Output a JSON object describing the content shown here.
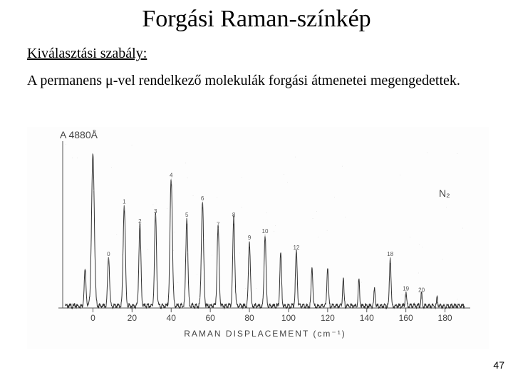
{
  "title": "Forgási Raman-színkép",
  "subtitle": "Kiválasztási szabály:",
  "body": "A permanens μ-vel rendelkező molekulák forgási átmenetei megengedettek.",
  "page_number": "47",
  "spectrum": {
    "annotation_left": "A  4880Å",
    "molecule": "N₂",
    "x_axis_title": "RAMAN  DISPLACEMENT    (cm⁻¹)",
    "x_ticks": [
      0,
      20,
      40,
      60,
      80,
      100,
      120,
      140,
      160,
      180
    ],
    "xlim": [
      -14,
      190
    ],
    "baseline_y": 0.02,
    "noise_amp": 0.015,
    "line_color": "#333333",
    "axis_color": "#555555",
    "background": "#fdfdfd",
    "ink_speckle": true,
    "peaks": [
      {
        "x": -4,
        "h": 0.22,
        "w": 1.2,
        "label": ""
      },
      {
        "x": 0,
        "h": 0.92,
        "w": 1.8,
        "label": ""
      },
      {
        "x": 8,
        "h": 0.3,
        "w": 1.2,
        "label": "0"
      },
      {
        "x": 16,
        "h": 0.62,
        "w": 1.4,
        "label": "1"
      },
      {
        "x": 24,
        "h": 0.5,
        "w": 1.3,
        "label": "2"
      },
      {
        "x": 32,
        "h": 0.56,
        "w": 1.3,
        "label": "3"
      },
      {
        "x": 40,
        "h": 0.78,
        "w": 1.5,
        "label": "4"
      },
      {
        "x": 48,
        "h": 0.54,
        "w": 1.3,
        "label": "5"
      },
      {
        "x": 56,
        "h": 0.64,
        "w": 1.4,
        "label": "6"
      },
      {
        "x": 64,
        "h": 0.48,
        "w": 1.3,
        "label": "7"
      },
      {
        "x": 72,
        "h": 0.54,
        "w": 1.3,
        "label": "8"
      },
      {
        "x": 80,
        "h": 0.4,
        "w": 1.2,
        "label": "9"
      },
      {
        "x": 88,
        "h": 0.44,
        "w": 1.2,
        "label": "10"
      },
      {
        "x": 96,
        "h": 0.32,
        "w": 1.1,
        "label": ""
      },
      {
        "x": 104,
        "h": 0.34,
        "w": 1.1,
        "label": "12"
      },
      {
        "x": 112,
        "h": 0.24,
        "w": 1.0,
        "label": ""
      },
      {
        "x": 120,
        "h": 0.24,
        "w": 1.0,
        "label": ""
      },
      {
        "x": 128,
        "h": 0.16,
        "w": 0.9,
        "label": ""
      },
      {
        "x": 136,
        "h": 0.16,
        "w": 0.9,
        "label": ""
      },
      {
        "x": 144,
        "h": 0.11,
        "w": 0.8,
        "label": ""
      },
      {
        "x": 152,
        "h": 0.3,
        "w": 1.0,
        "label": "18"
      },
      {
        "x": 160,
        "h": 0.09,
        "w": 0.8,
        "label": "19"
      },
      {
        "x": 168,
        "h": 0.08,
        "w": 0.8,
        "label": "20"
      },
      {
        "x": 176,
        "h": 0.05,
        "w": 0.7,
        "label": ""
      }
    ]
  }
}
